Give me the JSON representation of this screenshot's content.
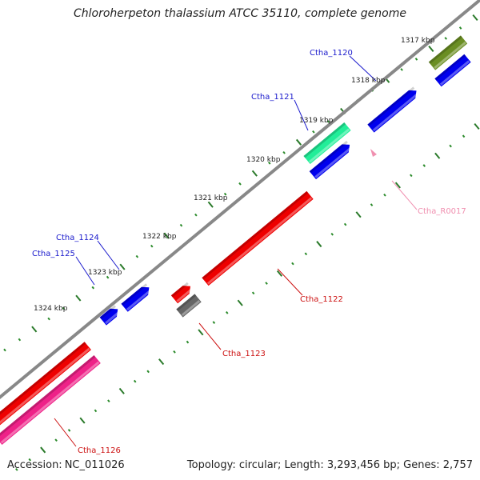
{
  "title": "Chloroherpeton thalassium ATCC 35110, complete genome",
  "footer": {
    "accession_label": "Accession:",
    "accession_value": "NC_011026",
    "topology": "Topology: circular; Length: 3,293,456 bp; Genes: 2,757"
  },
  "colors": {
    "backbone": "#888888",
    "tick_minor": "#2a8a2a",
    "tick_major": "#2a7a2a",
    "label_forward": "#1a1acc",
    "label_reverse": "#cc1111",
    "label_rna": "#f090b0"
  },
  "kbp_labels": [
    "1317 kbp",
    "1318 kbp",
    "1319 kbp",
    "1320 kbp",
    "1321 kbp",
    "1322 kbp",
    "1323 kbp",
    "1324 kbp"
  ],
  "genes": [
    {
      "name": "ctha-1119",
      "color": "#6b8e23",
      "strand": "forward"
    },
    {
      "name": "ctha-1120",
      "color": "#0000ee",
      "strand": "forward"
    },
    {
      "name": "ctha-1121",
      "color": "#0000ee",
      "strand": "forward"
    },
    {
      "name": "ctha-1121-b",
      "color": "#0000ee",
      "strand": "forward"
    },
    {
      "name": "ctha-1121-teal",
      "color": "#22ee99",
      "strand": "forward"
    },
    {
      "name": "ctha-1124",
      "color": "#0000ee",
      "strand": "forward"
    },
    {
      "name": "ctha-1125",
      "color": "#0000ee",
      "strand": "forward"
    },
    {
      "name": "ctha-1122",
      "color": "#ee0000",
      "strand": "reverse"
    },
    {
      "name": "ctha-1123-red",
      "color": "#ee0000",
      "strand": "reverse"
    },
    {
      "name": "ctha-1123",
      "color": "#666666",
      "strand": "reverse"
    },
    {
      "name": "ctha-r0017",
      "color": "#f090b0",
      "strand": "reverse"
    },
    {
      "name": "ctha-1126-red",
      "color": "#ee0000",
      "strand": "reverse"
    },
    {
      "name": "ctha-1126",
      "color": "#ee2288",
      "strand": "reverse"
    }
  ],
  "gene_labels": [
    {
      "name": "ctha-1120",
      "text": "Ctha_1120",
      "color": "#1a1acc"
    },
    {
      "name": "ctha-1121",
      "text": "Ctha_1121",
      "color": "#1a1acc"
    },
    {
      "name": "ctha-1124",
      "text": "Ctha_1124",
      "color": "#1a1acc"
    },
    {
      "name": "ctha-1125",
      "text": "Ctha_1125",
      "color": "#1a1acc"
    },
    {
      "name": "ctha-1122",
      "text": "Ctha_1122",
      "color": "#cc1111"
    },
    {
      "name": "ctha-1123",
      "text": "Ctha_1123",
      "color": "#cc1111"
    },
    {
      "name": "ctha-r0017",
      "text": "Ctha_R0017",
      "color": "#f090b0"
    },
    {
      "name": "ctha-1126",
      "text": "Ctha_1126",
      "color": "#cc1111"
    }
  ]
}
